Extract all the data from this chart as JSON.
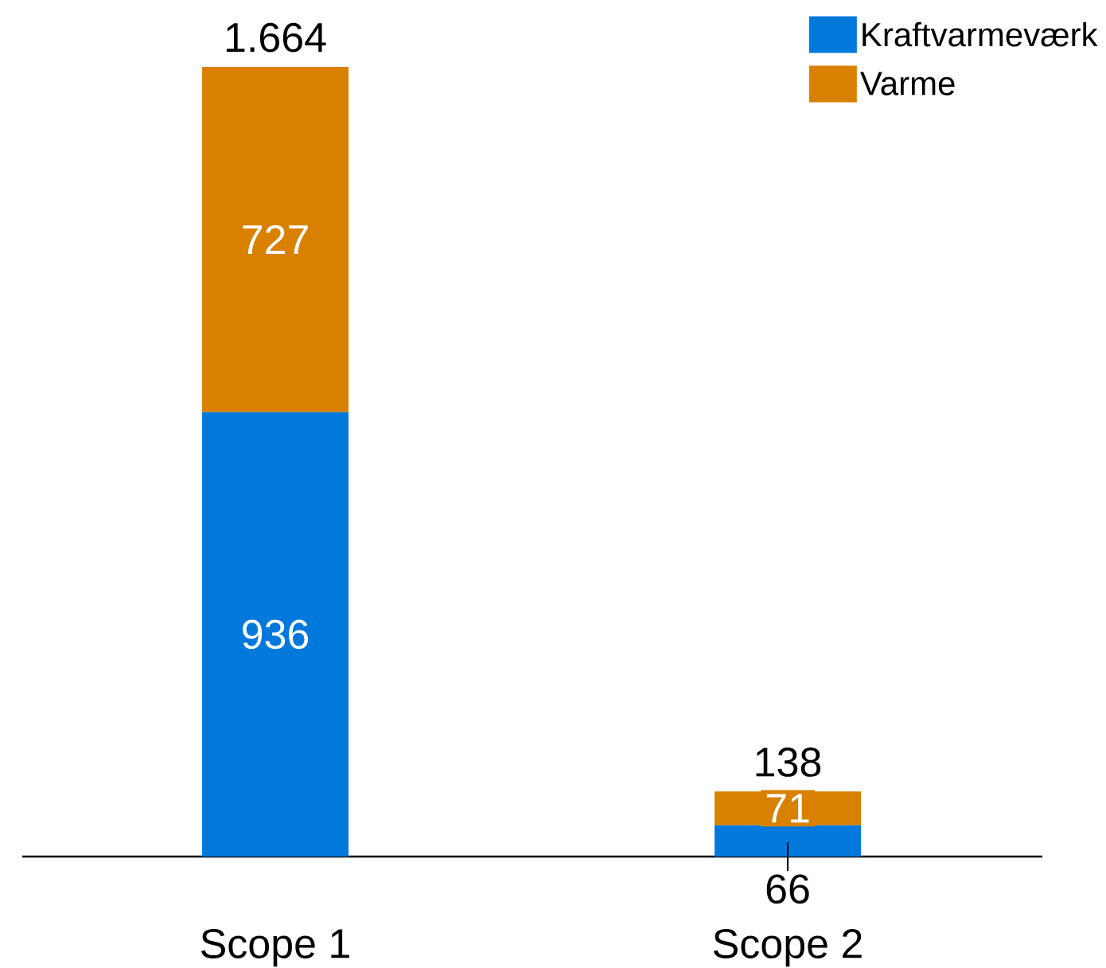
{
  "chart_data": {
    "type": "bar",
    "stacked": true,
    "categories": [
      "Scope 1",
      "Scope 2"
    ],
    "series": [
      {
        "name": "Kraftvarmeværk",
        "color": "#0078dc",
        "values": [
          936,
          66
        ]
      },
      {
        "name": "Varme",
        "color": "#d98000",
        "values": [
          727,
          71
        ]
      }
    ],
    "totals": [
      "1.664",
      "138"
    ],
    "data_labels": true,
    "legend": "top right"
  }
}
